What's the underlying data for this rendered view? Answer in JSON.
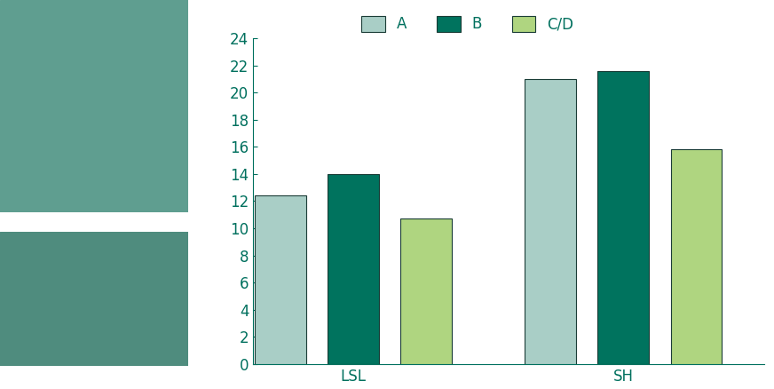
{
  "chart_data": {
    "type": "bar",
    "categories": [
      "LSL",
      "SH"
    ],
    "series": [
      {
        "name": "A",
        "color": "#a9cec6",
        "values": [
          12.4,
          21.0
        ]
      },
      {
        "name": "B",
        "color": "#00735e",
        "values": [
          14.0,
          21.6
        ]
      },
      {
        "name": "C/D",
        "color": "#afd580",
        "values": [
          10.7,
          15.8
        ]
      }
    ],
    "ylim": [
      0,
      24
    ],
    "yticks": [
      0,
      2,
      4,
      6,
      8,
      10,
      12,
      14,
      16,
      18,
      20,
      22,
      24
    ],
    "grid": false,
    "legend": "upper center"
  }
}
